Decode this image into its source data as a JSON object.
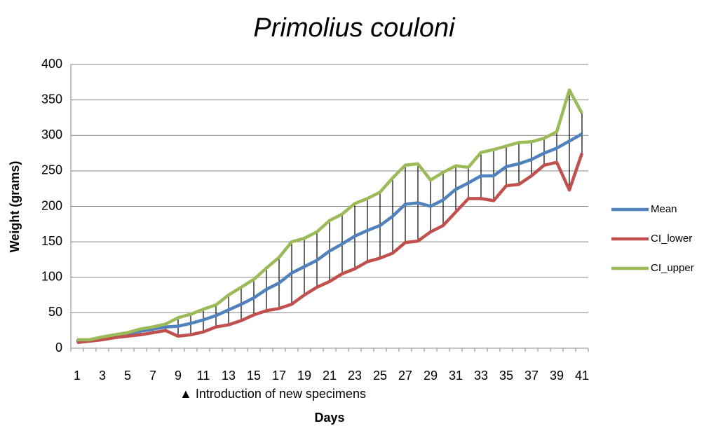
{
  "chart_data": {
    "type": "line",
    "title": "Primolius couloni",
    "x_label": "Days",
    "y_label": "Weight (grams)",
    "annotation": "▲ Introduction of new specimens",
    "categories": [
      1,
      null,
      3,
      null,
      5,
      null,
      7,
      null,
      9,
      null,
      11,
      null,
      13,
      null,
      15,
      null,
      17,
      null,
      19,
      null,
      21,
      null,
      23,
      null,
      25,
      null,
      27,
      null,
      29,
      null,
      31,
      null,
      33,
      null,
      35,
      null,
      37,
      null,
      39,
      null,
      41
    ],
    "series": [
      {
        "name": "Mean",
        "color": "#4f81bd",
        "values": [
          10,
          11,
          14,
          17,
          20,
          24,
          27,
          30,
          31,
          35,
          40,
          46,
          54,
          62,
          71,
          83,
          92,
          106,
          115,
          124,
          137,
          147,
          158,
          166,
          173,
          186,
          203,
          205,
          200,
          209,
          224,
          233,
          243,
          243,
          256,
          260,
          266,
          275,
          282,
          292,
          302
        ]
      },
      {
        "name": "CI_lower",
        "color": "#c0504d",
        "values": [
          8,
          10,
          12,
          15,
          17,
          19,
          22,
          25,
          17,
          19,
          23,
          30,
          33,
          39,
          47,
          53,
          56,
          62,
          75,
          86,
          94,
          105,
          112,
          122,
          127,
          134,
          149,
          151,
          164,
          173,
          192,
          211,
          211,
          208,
          229,
          231,
          243,
          258,
          262,
          223,
          275
        ]
      },
      {
        "name": "CI_upper",
        "color": "#9bbb59",
        "values": [
          12,
          12,
          16,
          19,
          22,
          27,
          30,
          34,
          43,
          48,
          55,
          61,
          75,
          86,
          97,
          113,
          128,
          150,
          155,
          164,
          180,
          189,
          204,
          211,
          220,
          240,
          258,
          260,
          237,
          248,
          257,
          255,
          276,
          280,
          285,
          290,
          291,
          296,
          305,
          364,
          331
        ]
      }
    ],
    "ylim": [
      0,
      400
    ],
    "yticks": [
      0,
      50,
      100,
      150,
      200,
      250,
      300,
      350,
      400
    ],
    "grid": true,
    "legend": "right"
  }
}
